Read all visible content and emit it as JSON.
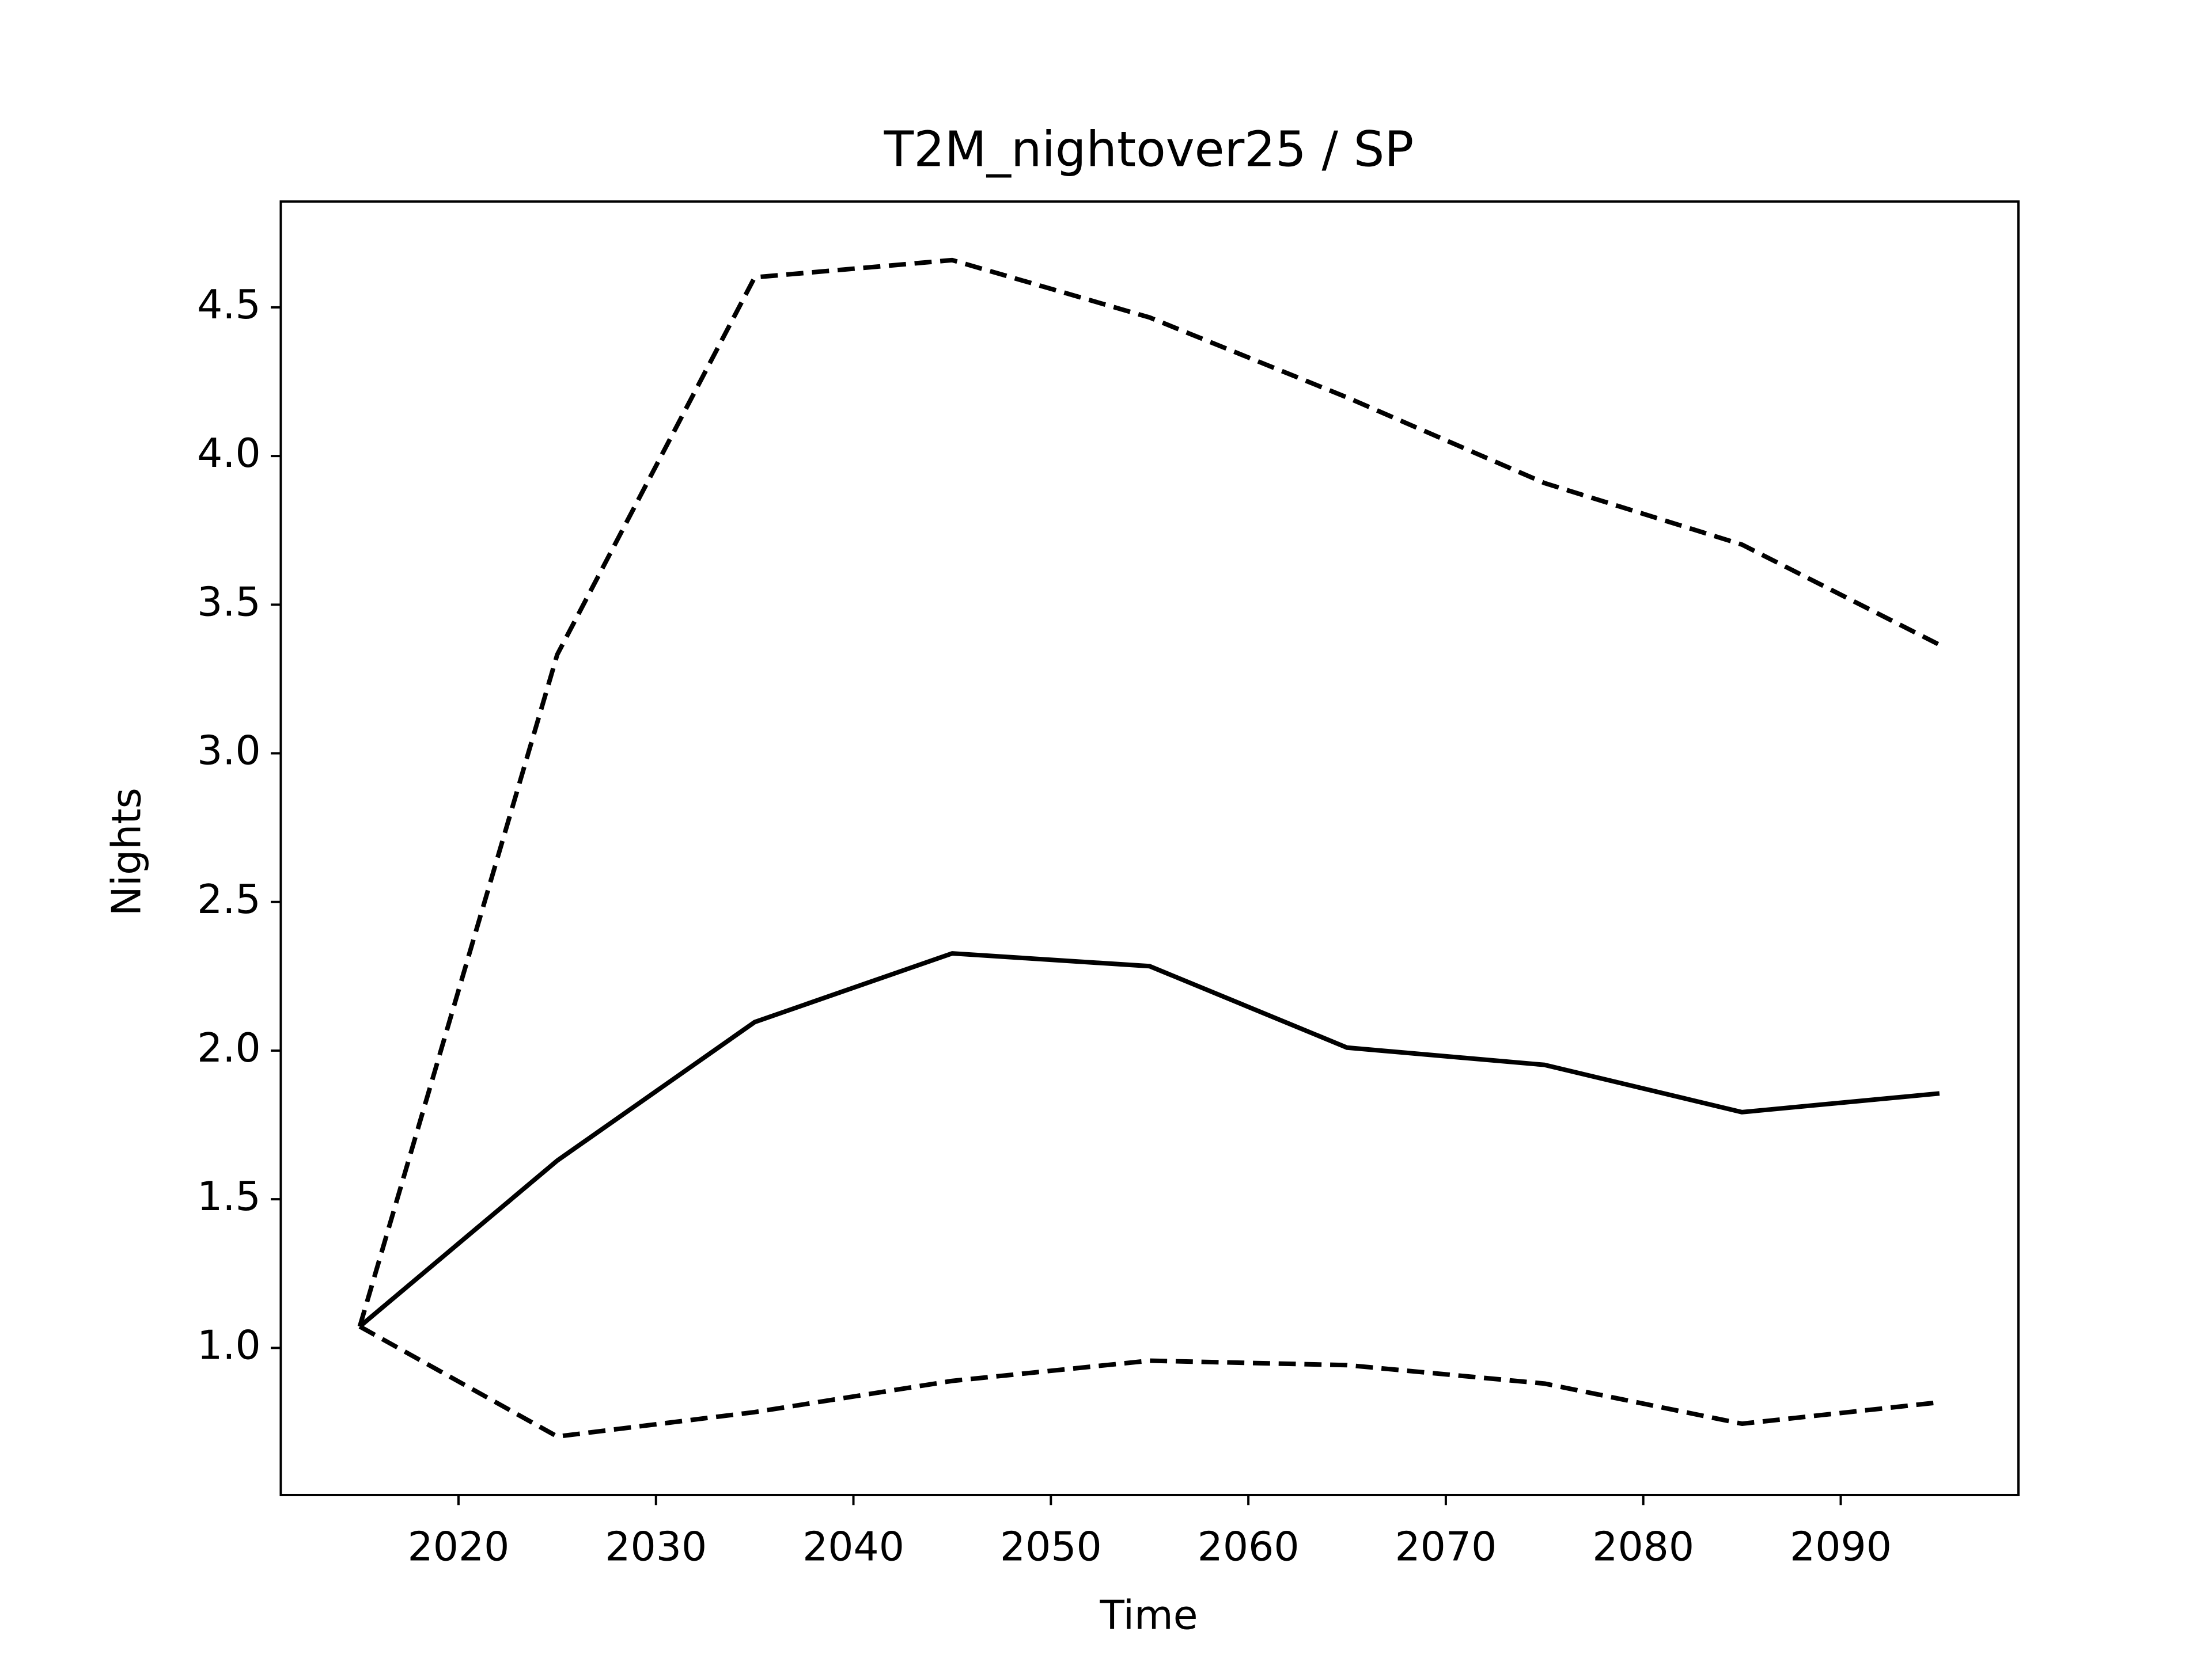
{
  "chart_data": {
    "type": "line",
    "title": "T2M_nightover25 / SP",
    "x_label": "Time",
    "y_label": "Nights",
    "x": [
      2015,
      2025,
      2035,
      2045,
      2055,
      2065,
      2075,
      2085,
      2095
    ],
    "series": [
      {
        "color": "#000000",
        "linestyle": "solid",
        "values": [
          1.072,
          1.63,
          2.096,
          2.327,
          2.284,
          2.01,
          1.952,
          1.793,
          1.856
        ]
      },
      {
        "color": "#000000",
        "linestyle": "dashed",
        "values": [
          1.072,
          3.332,
          4.601,
          4.659,
          4.466,
          4.197,
          3.909,
          3.702,
          3.365
        ]
      },
      {
        "color": "#000000",
        "linestyle": "dashed",
        "values": [
          1.072,
          0.702,
          0.784,
          0.889,
          0.957,
          0.942,
          0.88,
          0.745,
          0.817
        ]
      }
    ],
    "xlim": [
      2011,
      2099
    ],
    "xticks": [
      2020,
      2030,
      2040,
      2050,
      2060,
      2070,
      2080,
      2090
    ],
    "ylim": [
      0.505,
      4.856
    ],
    "yticks": [
      {
        "value": 1,
        "label": "1.0"
      },
      1.5,
      {
        "value": 2,
        "label": "2.0"
      },
      2.5,
      {
        "value": 3,
        "label": "3.0"
      },
      3.5,
      {
        "value": 4,
        "label": "4.0"
      },
      4.5
    ],
    "grid": false
  }
}
